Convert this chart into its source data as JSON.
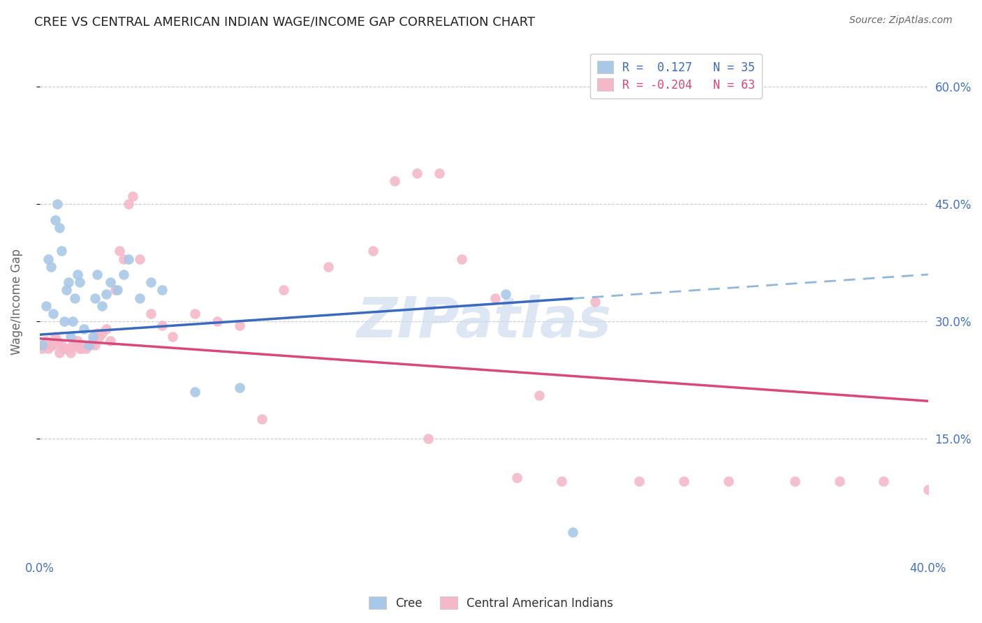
{
  "title": "CREE VS CENTRAL AMERICAN INDIAN WAGE/INCOME GAP CORRELATION CHART",
  "source": "Source: ZipAtlas.com",
  "ylabel": "Wage/Income Gap",
  "ytick_labels": [
    "15.0%",
    "30.0%",
    "45.0%",
    "60.0%"
  ],
  "ytick_values": [
    0.15,
    0.3,
    0.45,
    0.6
  ],
  "xlim": [
    0.0,
    0.4
  ],
  "ylim": [
    0.0,
    0.65
  ],
  "cree_color": "#a8c8e8",
  "cai_color": "#f4b8c8",
  "trendline_cree_solid_color": "#3a6abf",
  "trendline_cree_dashed_color": "#90b8d8",
  "trendline_cai_color": "#d84878",
  "legend_cree_text": "R =  0.127   N = 35",
  "legend_cai_text": "R = -0.204   N = 63",
  "legend_cree_color": "#a8c8e8",
  "legend_cai_color": "#f4b8c8",
  "legend_cree_text_color": "#3a6abf",
  "legend_cai_text_color": "#d84878",
  "cree_label": "Cree",
  "cai_label": "Central American Indians",
  "watermark": "ZIPatlas",
  "cree_x": [
    0.001,
    0.003,
    0.004,
    0.005,
    0.006,
    0.007,
    0.008,
    0.009,
    0.01,
    0.011,
    0.012,
    0.013,
    0.014,
    0.015,
    0.016,
    0.017,
    0.018,
    0.02,
    0.022,
    0.024,
    0.025,
    0.026,
    0.028,
    0.03,
    0.032,
    0.035,
    0.038,
    0.04,
    0.045,
    0.05,
    0.055,
    0.07,
    0.09,
    0.21,
    0.24
  ],
  "cree_y": [
    0.27,
    0.32,
    0.38,
    0.37,
    0.31,
    0.43,
    0.45,
    0.42,
    0.39,
    0.3,
    0.34,
    0.35,
    0.28,
    0.3,
    0.33,
    0.36,
    0.35,
    0.29,
    0.27,
    0.28,
    0.33,
    0.36,
    0.32,
    0.335,
    0.35,
    0.34,
    0.36,
    0.38,
    0.33,
    0.35,
    0.34,
    0.21,
    0.215,
    0.335,
    0.03
  ],
  "cai_x": [
    0.001,
    0.002,
    0.003,
    0.004,
    0.005,
    0.006,
    0.007,
    0.008,
    0.009,
    0.01,
    0.011,
    0.012,
    0.013,
    0.014,
    0.015,
    0.016,
    0.017,
    0.018,
    0.019,
    0.02,
    0.021,
    0.022,
    0.023,
    0.024,
    0.025,
    0.026,
    0.027,
    0.028,
    0.03,
    0.032,
    0.034,
    0.036,
    0.038,
    0.04,
    0.042,
    0.045,
    0.05,
    0.055,
    0.06,
    0.07,
    0.08,
    0.09,
    0.1,
    0.11,
    0.13,
    0.15,
    0.16,
    0.17,
    0.175,
    0.18,
    0.19,
    0.205,
    0.215,
    0.225,
    0.235,
    0.25,
    0.27,
    0.29,
    0.31,
    0.34,
    0.36,
    0.38,
    0.4
  ],
  "cai_y": [
    0.265,
    0.27,
    0.275,
    0.265,
    0.27,
    0.27,
    0.28,
    0.275,
    0.26,
    0.27,
    0.265,
    0.265,
    0.265,
    0.26,
    0.27,
    0.27,
    0.275,
    0.265,
    0.265,
    0.27,
    0.265,
    0.27,
    0.27,
    0.275,
    0.27,
    0.285,
    0.28,
    0.285,
    0.29,
    0.275,
    0.34,
    0.39,
    0.38,
    0.45,
    0.46,
    0.38,
    0.31,
    0.295,
    0.28,
    0.31,
    0.3,
    0.295,
    0.175,
    0.34,
    0.37,
    0.39,
    0.48,
    0.49,
    0.15,
    0.49,
    0.38,
    0.33,
    0.1,
    0.205,
    0.095,
    0.325,
    0.095,
    0.095,
    0.095,
    0.095,
    0.095,
    0.095,
    0.085
  ],
  "cree_trendline_start_x": 0.0,
  "cree_trendline_end_solid_x": 0.24,
  "cree_trendline_end_dashed_x": 0.4,
  "cree_trendline_start_y": 0.283,
  "cree_trendline_end_y": 0.36,
  "cai_trendline_start_x": 0.0,
  "cai_trendline_end_x": 0.4,
  "cai_trendline_start_y": 0.278,
  "cai_trendline_end_y": 0.198
}
